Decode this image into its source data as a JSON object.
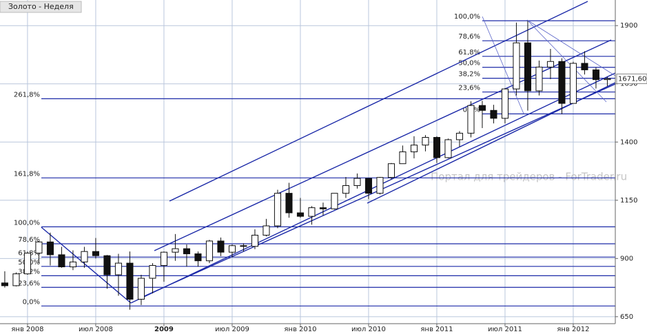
{
  "chart_data": {
    "type": "candlestick",
    "title": "Золото - Неделя",
    "watermark": "Портал для трейдеров - ForTrader.ru",
    "candles": {
      "open": [
        795,
        783,
        834,
        923,
        971,
        916,
        864,
        885,
        930,
        912,
        830,
        880,
        725,
        815,
        870,
        927,
        942,
        920,
        890,
        975,
        927,
        955,
        952,
        1000,
        1040,
        1180,
        1096,
        1081,
        1118,
        1113,
        1180,
        1213,
        1244,
        1180,
        1248,
        1307,
        1358,
        1387,
        1420,
        1333,
        1410,
        1438,
        1557,
        1536,
        1502,
        1628,
        1826,
        1620,
        1722,
        1746,
        1566,
        1738,
        1710,
        1668
      ],
      "high": [
        845,
        840,
        930,
        975,
        1011,
        950,
        935,
        950,
        988,
        915,
        920,
        930,
        830,
        880,
        930,
        1005,
        960,
        930,
        980,
        990,
        960,
        965,
        1025,
        1070,
        1195,
        1225,
        1160,
        1125,
        1140,
        1180,
        1250,
        1265,
        1245,
        1250,
        1310,
        1385,
        1425,
        1430,
        1425,
        1415,
        1447,
        1575,
        1577,
        1560,
        1632,
        1913,
        1920,
        1750,
        1800,
        1760,
        1745,
        1790,
        1720,
        1680
      ],
      "low": [
        775,
        780,
        830,
        880,
        870,
        860,
        850,
        860,
        900,
        770,
        740,
        680,
        700,
        750,
        800,
        890,
        865,
        865,
        880,
        910,
        905,
        930,
        940,
        995,
        1030,
        1075,
        1075,
        1045,
        1085,
        1110,
        1160,
        1200,
        1155,
        1175,
        1240,
        1310,
        1330,
        1360,
        1310,
        1330,
        1380,
        1420,
        1460,
        1480,
        1480,
        1600,
        1535,
        1600,
        1670,
        1520,
        1565,
        1690,
        1630,
        1640
      ],
      "close": [
        783,
        834,
        923,
        971,
        916,
        864,
        885,
        930,
        912,
        830,
        880,
        725,
        815,
        870,
        927,
        942,
        920,
        890,
        975,
        927,
        955,
        952,
        1000,
        1040,
        1180,
        1096,
        1081,
        1118,
        1113,
        1180,
        1213,
        1244,
        1180,
        1248,
        1307,
        1358,
        1387,
        1420,
        1333,
        1410,
        1438,
        1557,
        1536,
        1502,
        1628,
        1826,
        1620,
        1722,
        1746,
        1566,
        1738,
        1710,
        1668,
        1672
      ]
    },
    "up_color": "#ffffff",
    "down_color": "#111111",
    "last_price": {
      "value": 1671.6,
      "label": "1671,60"
    },
    "ylim": [
      620,
      2010
    ],
    "yticks": [
      650,
      900,
      1150,
      1400,
      1650,
      1900
    ],
    "xlim": [
      -0.42,
      53.7
    ],
    "xticks": [
      {
        "value": 2,
        "label": "янв 2008"
      },
      {
        "value": 8,
        "label": "июл 2008"
      },
      {
        "value": 14,
        "label": "2009"
      },
      {
        "value": 20,
        "label": "июл 2009"
      },
      {
        "value": 26,
        "label": "янв 2010"
      },
      {
        "value": 32,
        "label": "июл 2010"
      },
      {
        "value": 38,
        "label": "янв 2011"
      },
      {
        "value": 44,
        "label": "июл 2011"
      },
      {
        "value": 50,
        "label": "янв 2012"
      }
    ],
    "grid": true,
    "fib_left": [
      {
        "value": 1586,
        "label": "261,8%"
      },
      {
        "value": 1246,
        "label": "161,8%"
      },
      {
        "value": 1036,
        "label": "100,0%"
      },
      {
        "value": 963,
        "label": "78,6%"
      },
      {
        "value": 906,
        "label": "61,8%"
      },
      {
        "value": 866,
        "label": "50,0%"
      },
      {
        "value": 826,
        "label": "38,2%"
      },
      {
        "value": 776,
        "label": "23,6%"
      },
      {
        "value": 696,
        "label": "0,0%"
      }
    ],
    "fib_right": [
      {
        "value": 1921,
        "label": "100,0%"
      },
      {
        "value": 1835,
        "label": "78,6%"
      },
      {
        "value": 1768,
        "label": "61,8%"
      },
      {
        "value": 1721,
        "label": "50,0%"
      },
      {
        "value": 1674,
        "label": "38,2%"
      },
      {
        "value": 1615,
        "label": "23,6%"
      },
      {
        "value": 1521,
        "label": "0,0%"
      }
    ]
  }
}
